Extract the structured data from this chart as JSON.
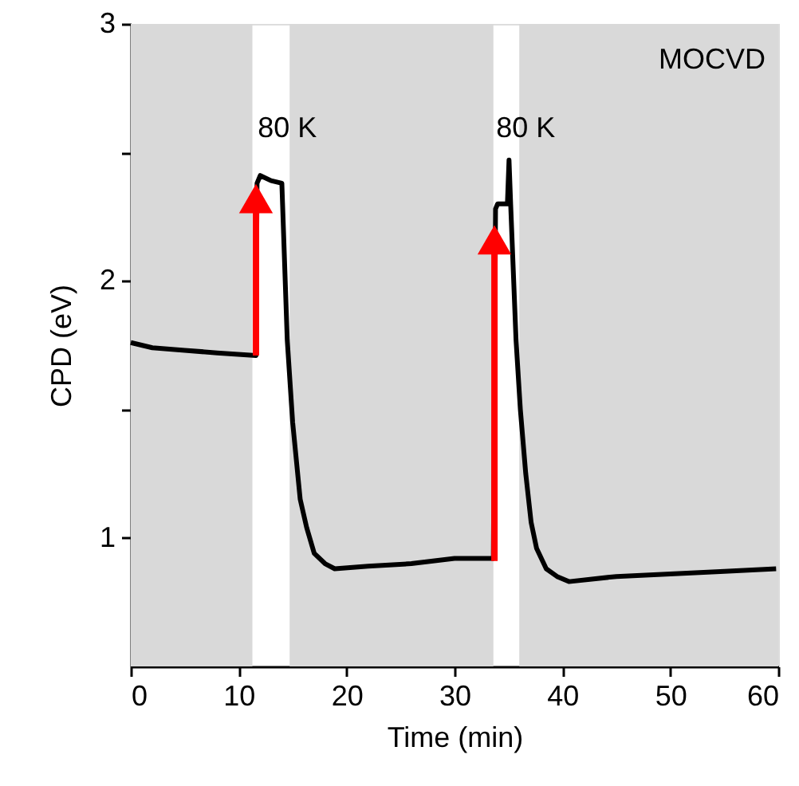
{
  "chart_data": {
    "type": "line",
    "xlabel": "Time (min)",
    "ylabel": "CPD (eV)",
    "xlim": [
      0,
      60
    ],
    "ylim": [
      0.5,
      3
    ],
    "xticks": [
      0,
      10,
      20,
      30,
      40,
      50,
      60
    ],
    "yticks": [
      1,
      {
        "value": 1.5,
        "label": null
      },
      2,
      {
        "value": 2.5,
        "label": null
      },
      3
    ],
    "grid": false,
    "line_style": "solid",
    "marker": "none",
    "bands": [
      {
        "axis": "x",
        "from": 0,
        "to": 11.27,
        "color": "#d9d9d9"
      },
      {
        "axis": "x",
        "from": 14.72,
        "to": 33.6,
        "color": "#d9d9d9"
      },
      {
        "axis": "x",
        "from": 36.0,
        "to": 60,
        "color": "#d9d9d9"
      }
    ],
    "annotations": [
      {
        "text": "80 K",
        "x": 14.5,
        "y": 2.59
      },
      {
        "text": "80 K",
        "x": 36.6,
        "y": 2.59
      },
      "MOCVD"
    ],
    "series": [
      {
        "color": "#000000",
        "x": [
          0,
          2,
          5,
          8,
          11.6,
          11.7,
          12.0,
          13.0,
          14.0,
          14.5,
          15.0,
          15.7,
          16.3,
          17.0,
          18.0,
          18.9,
          22,
          26,
          30,
          33.6,
          33.8,
          34.0,
          34.9,
          35.05,
          35.2,
          35.7,
          36.1,
          36.6,
          37.1,
          37.6,
          38.5,
          39.5,
          40.6,
          45,
          50,
          55,
          59.8
        ],
        "values": [
          1.76,
          1.74,
          1.73,
          1.72,
          1.71,
          2.38,
          2.41,
          2.39,
          2.38,
          1.77,
          1.45,
          1.15,
          1.04,
          0.94,
          0.9,
          0.88,
          0.89,
          0.9,
          0.92,
          0.92,
          2.28,
          2.3,
          2.3,
          2.47,
          2.3,
          1.77,
          1.5,
          1.25,
          1.06,
          0.96,
          0.88,
          0.85,
          0.83,
          0.85,
          0.86,
          0.87,
          0.88
        ]
      },
      {
        "type": "line",
        "marker": "triangle",
        "color": "#ff0000",
        "x": [
          11.6,
          11.6
        ],
        "values": [
          1.71,
          2.32
        ]
      },
      {
        "type": "line",
        "marker": "triangle",
        "color": "#ff0000",
        "x": [
          33.7,
          33.7
        ],
        "values": [
          0.91,
          2.16
        ]
      }
    ]
  }
}
